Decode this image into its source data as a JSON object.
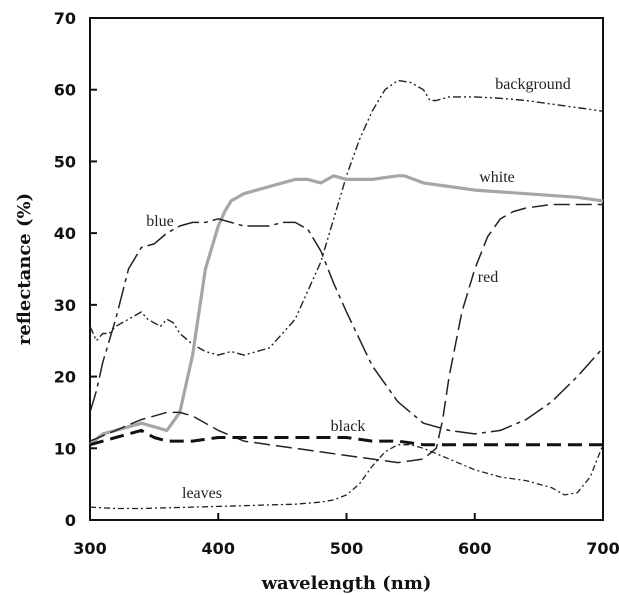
{
  "chart_data": {
    "type": "line",
    "title": "",
    "xlabel": "wavelength (nm)",
    "ylabel": "reflectance (%)",
    "xlim": [
      300,
      700
    ],
    "ylim": [
      0,
      70
    ],
    "xticks": [
      "300",
      "400",
      "500",
      "600",
      "700"
    ],
    "yticks": [
      "0",
      "10",
      "20",
      "30",
      "40",
      "50",
      "60",
      "70"
    ],
    "grid": false,
    "legend": "none",
    "series": [
      {
        "name": "background",
        "color": "#222222",
        "dash": "dash-dot-dot",
        "x": [
          300,
          305,
          310,
          315,
          320,
          330,
          340,
          345,
          350,
          355,
          360,
          365,
          370,
          380,
          390,
          400,
          410,
          420,
          430,
          440,
          450,
          460,
          470,
          480,
          490,
          500,
          510,
          520,
          530,
          540,
          550,
          560,
          565,
          570,
          580,
          600,
          620,
          640,
          660,
          680,
          700
        ],
        "y": [
          27,
          25,
          26,
          26,
          27,
          28,
          29,
          28,
          27.5,
          27,
          28,
          27.5,
          26,
          24.5,
          23.5,
          23,
          23.5,
          23,
          23.5,
          24,
          26,
          28,
          32,
          36,
          42,
          48,
          53,
          57,
          60,
          61.3,
          61,
          60,
          58.5,
          58.5,
          59,
          59,
          58.8,
          58.5,
          58,
          57.5,
          57
        ]
      },
      {
        "name": "white",
        "color": "#a6a6a6",
        "dash": "solid",
        "x": [
          300,
          310,
          320,
          330,
          340,
          350,
          360,
          370,
          380,
          390,
          400,
          405,
          410,
          420,
          430,
          440,
          450,
          460,
          470,
          480,
          490,
          500,
          520,
          540,
          545,
          560,
          580,
          600,
          640,
          680,
          700
        ],
        "y": [
          10.5,
          12,
          12.5,
          13,
          13.5,
          13,
          12.5,
          15,
          23,
          35,
          41,
          43,
          44.5,
          45.5,
          46,
          46.5,
          47,
          47.5,
          47.5,
          47,
          48,
          47.5,
          47.5,
          48,
          48,
          47,
          46.5,
          46,
          45.5,
          45,
          44.5
        ]
      },
      {
        "name": "blue",
        "color": "#222222",
        "dash": "long-dash-short",
        "x": [
          300,
          305,
          310,
          320,
          330,
          340,
          350,
          360,
          370,
          380,
          390,
          400,
          410,
          420,
          430,
          440,
          450,
          460,
          470,
          480,
          490,
          500,
          520,
          540,
          560,
          580,
          600,
          620,
          640,
          660,
          680,
          700
        ],
        "y": [
          15,
          18,
          22,
          28,
          35,
          38,
          38.5,
          40,
          41,
          41.5,
          41.5,
          42,
          41.5,
          41,
          41,
          41,
          41.5,
          41.5,
          40.5,
          37.5,
          33,
          29,
          21.5,
          16.5,
          13.5,
          12.5,
          12,
          12.5,
          14,
          16.5,
          20,
          24
        ]
      },
      {
        "name": "red",
        "color": "#222222",
        "dash": "long-dash",
        "x": [
          300,
          320,
          340,
          360,
          370,
          380,
          400,
          420,
          440,
          460,
          480,
          500,
          520,
          540,
          560,
          570,
          575,
          580,
          590,
          600,
          610,
          620,
          630,
          640,
          660,
          680,
          700
        ],
        "y": [
          11,
          12.5,
          14,
          15,
          15,
          14.5,
          12.5,
          11,
          10.5,
          10,
          9.5,
          9,
          8.5,
          8,
          8.5,
          10,
          14,
          20,
          29,
          35,
          39.5,
          42,
          43,
          43.5,
          44,
          44,
          44
        ]
      },
      {
        "name": "black",
        "color": "#111111",
        "dash": "heavy-dash",
        "x": [
          300,
          320,
          340,
          350,
          360,
          380,
          400,
          420,
          440,
          460,
          480,
          500,
          520,
          540,
          560,
          580,
          600,
          620,
          640,
          660,
          680,
          700
        ],
        "y": [
          10.5,
          11.5,
          12.5,
          11.5,
          11,
          11,
          11.5,
          11.5,
          11.5,
          11.5,
          11.5,
          11.5,
          11,
          11,
          10.5,
          10.5,
          10.5,
          10.5,
          10.5,
          10.5,
          10.5,
          10.5
        ]
      },
      {
        "name": "leaves",
        "color": "#222222",
        "dash": "dash-dot",
        "x": [
          300,
          320,
          340,
          360,
          380,
          400,
          420,
          440,
          460,
          480,
          490,
          500,
          510,
          520,
          530,
          540,
          550,
          560,
          580,
          600,
          620,
          640,
          660,
          670,
          680,
          690,
          700
        ],
        "y": [
          1.8,
          1.6,
          1.6,
          1.7,
          1.8,
          1.9,
          2,
          2.1,
          2.2,
          2.5,
          2.8,
          3.5,
          5,
          7.5,
          9.5,
          10.5,
          10.5,
          10,
          8.5,
          7,
          6,
          5.5,
          4.5,
          3.5,
          3.8,
          6,
          10.5
        ]
      }
    ],
    "annotations": [
      "background",
      "white",
      "blue",
      "red",
      "black",
      "leaves"
    ]
  }
}
